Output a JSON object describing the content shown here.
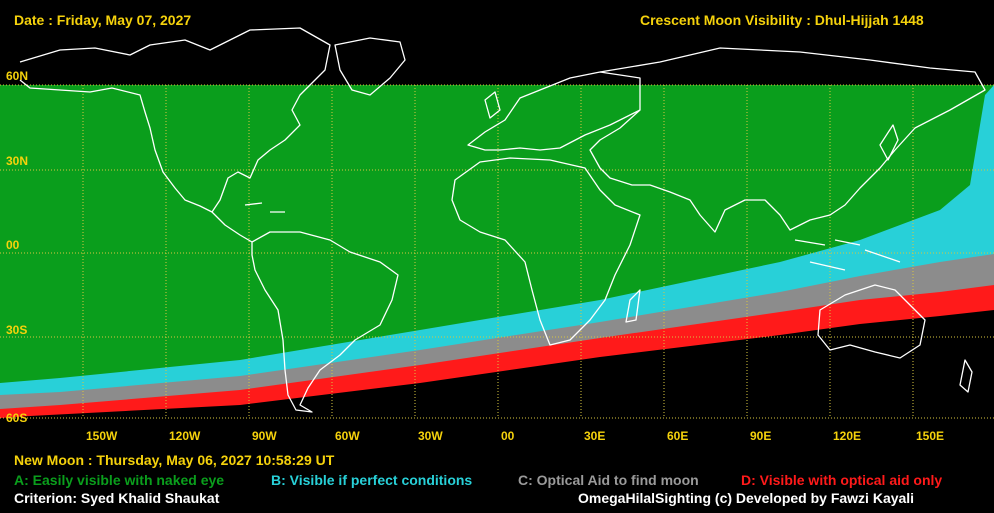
{
  "header": {
    "date": "Date : Friday, May 07, 2027",
    "title": "Crescent Moon Visibility : Dhul-Hijjah  1448"
  },
  "lat_labels": [
    "60N",
    "30N",
    "00",
    "30S",
    "60S"
  ],
  "lon_labels": [
    "150W",
    "120W",
    "90W",
    "60W",
    "30W",
    "00",
    "30E",
    "60E",
    "90E",
    "120E",
    "150E"
  ],
  "footer": {
    "new_moon": "New Moon : Thursday, May 06, 2027  10:58:29  UT",
    "criterion": "Criterion: Syed Khalid Shaukat",
    "credit": "OmegaHilalSighting  (c)  Developed by Fawzi Kayali"
  },
  "legend": [
    {
      "label": "A: Easily visible with naked eye",
      "color": "#0a9e1c"
    },
    {
      "label": "B: Visible if perfect conditions",
      "color": "#28d0d8"
    },
    {
      "label": "C: Optical Aid to find moon",
      "color": "#9a9a9a"
    },
    {
      "label": "D: Visible with optical aid only",
      "color": "#ff1a1a"
    }
  ],
  "colors": {
    "background": "#000000",
    "zone_a": "#0a9e1c",
    "zone_b": "#28d0d8",
    "zone_c": "#8c8c8c",
    "zone_d": "#ff1a1a",
    "grid": "#d8c640",
    "coastline": "#ffffff",
    "text": "#f5d20c"
  }
}
